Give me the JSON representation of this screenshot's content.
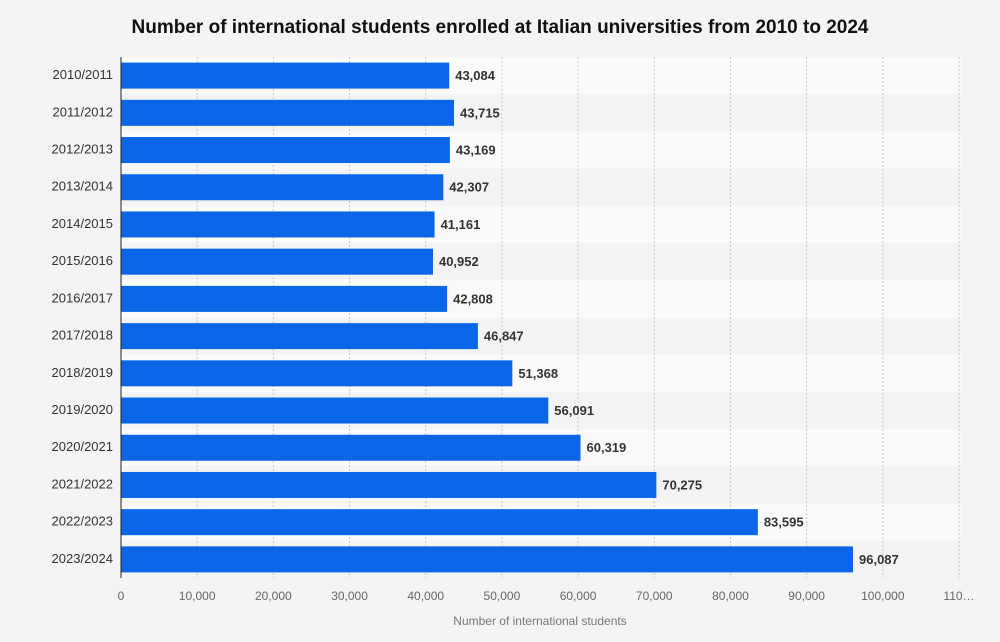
{
  "chart_data": {
    "type": "bar",
    "orientation": "horizontal",
    "title": "Number of international students enrolled at Italian universities from 2010 to 2024",
    "categories": [
      "2010/2011",
      "2011/2012",
      "2012/2013",
      "2013/2014",
      "2014/2015",
      "2015/2016",
      "2016/2017",
      "2017/2018",
      "2018/2019",
      "2019/2020",
      "2020/2021",
      "2021/2022",
      "2022/2023",
      "2023/2024"
    ],
    "values": [
      43084,
      43715,
      43169,
      42307,
      41161,
      40952,
      42808,
      46847,
      51368,
      56091,
      60319,
      70275,
      83595,
      96087
    ],
    "value_labels": [
      "43,084",
      "43,715",
      "43,169",
      "42,307",
      "41,161",
      "40,952",
      "42,808",
      "46,847",
      "51,368",
      "56,091",
      "60,319",
      "70,275",
      "83,595",
      "96,087"
    ],
    "color": "#0a66e6",
    "xlabel": "Number of international students",
    "xlim": [
      0,
      110000
    ],
    "xticks": [
      0,
      {
        "value": 10000,
        "label": "10,000"
      },
      {
        "value": 20000,
        "label": "20,000"
      },
      {
        "value": 30000,
        "label": "30,000"
      },
      {
        "value": 40000,
        "label": "40,000"
      },
      {
        "value": 50000,
        "label": "50,000"
      },
      {
        "value": 60000,
        "label": "60,000"
      },
      {
        "value": 70000,
        "label": "70,000"
      },
      {
        "value": 80000,
        "label": "80,000"
      },
      {
        "value": 90000,
        "label": "90,000"
      },
      {
        "value": 100000,
        "label": "100,000"
      },
      {
        "value": 110000,
        "label": "110…"
      }
    ],
    "grid": true
  }
}
